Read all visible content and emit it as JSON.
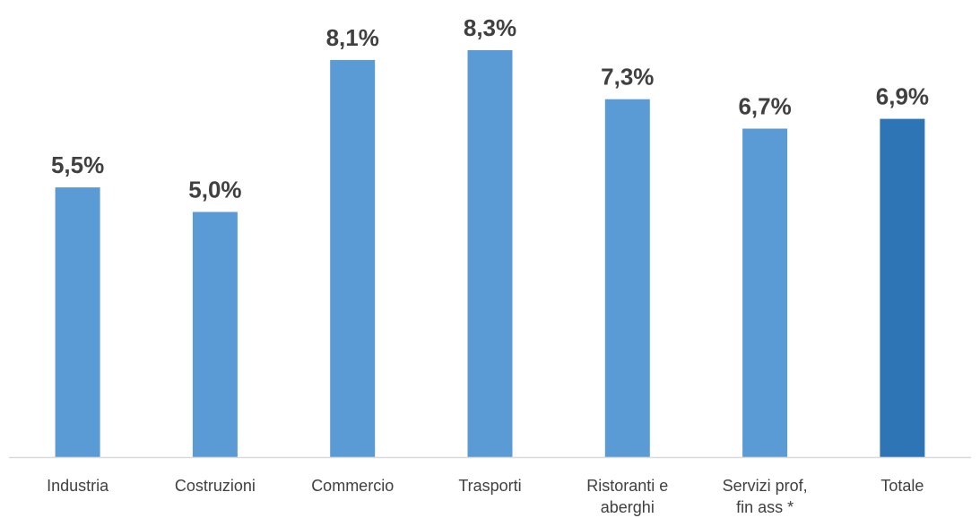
{
  "chart_data": {
    "type": "bar",
    "categories": [
      "Industria",
      "Costruzioni",
      "Commercio",
      "Trasporti",
      "Ristoranti e aberghi",
      "Servizi prof, fin ass *",
      "Totale"
    ],
    "values": [
      5.5,
      5.0,
      8.1,
      8.3,
      7.3,
      6.7,
      6.9
    ],
    "data_labels": [
      "5,5%",
      "5,0%",
      "8,1%",
      "8,3%",
      "7,3%",
      "6,7%",
      "6,9%"
    ],
    "ylim": [
      0,
      10
    ],
    "grid": false,
    "legend": "none",
    "colors": {
      "bar": "#5B9BD5",
      "highlight_bar": "#2E75B6",
      "axis": "#D9D9D9",
      "text": "#404040"
    },
    "highlight_category": "Totale"
  }
}
